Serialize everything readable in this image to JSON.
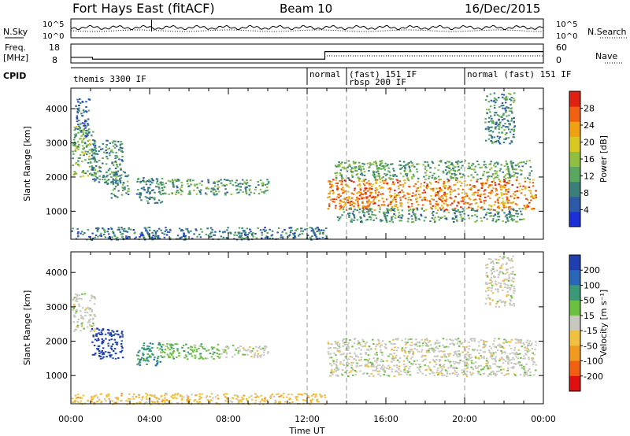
{
  "header": {
    "station": "Fort Hays East (fitACF)",
    "beam": "Beam 10",
    "date": "16/Dec/2015"
  },
  "noise_panel": {
    "left_label": "N.Sky",
    "right_label": "N.Search",
    "y_ticks_left": [
      "10^5",
      "10^0"
    ],
    "y_ticks_right": [
      "10^5",
      "10^0"
    ]
  },
  "freq_panel": {
    "left_label_1": "Freq.",
    "left_label_2": "[MHz]",
    "right_label": "Nave",
    "y_ticks_left": [
      "18",
      "8"
    ],
    "y_ticks_right": [
      "60",
      "0"
    ],
    "freq_series_mhz": [
      [
        0,
        11
      ],
      [
        1.1,
        11
      ],
      [
        1.1,
        10
      ],
      [
        12.9,
        10
      ],
      [
        12.9,
        14
      ],
      [
        24,
        14
      ]
    ]
  },
  "cpid_panel": {
    "label": "CPID",
    "modes": [
      {
        "text": "themis 3300 IF",
        "start_h": 0,
        "end_h": 12
      },
      {
        "text": "normal",
        "start_h": 12,
        "end_h": 14
      },
      {
        "text": "(fast) 151 IF",
        "start_h": 14,
        "end_h": 20
      },
      {
        "text": "rbsp 200 IF",
        "start_h": 14,
        "end_h": 20
      },
      {
        "text": "normal (fast) 151 IF",
        "start_h": 20,
        "end_h": 24
      }
    ]
  },
  "chart_data": [
    {
      "type": "heatmap",
      "title": "",
      "xlabel": "Time UT",
      "ylabel": "Slant Range [km]",
      "xlim_hours": [
        0,
        24
      ],
      "ylim_km": [
        180,
        4600
      ],
      "y_ticks": [
        1000,
        2000,
        3000,
        4000
      ],
      "colorbar": {
        "label": "Power [dB]",
        "ticks": [
          4,
          8,
          12,
          16,
          20,
          24,
          28
        ],
        "range": [
          0,
          32
        ],
        "colors": [
          "#1a2fd8",
          "#2c5aa8",
          "#3a7f7a",
          "#5aa860",
          "#8fbf40",
          "#d8c820",
          "#f0a010",
          "#f06010",
          "#e02010"
        ]
      },
      "regions": [
        {
          "t0": 0.05,
          "t1": 1.2,
          "r0": 2000,
          "r1": 3500,
          "val": 14
        },
        {
          "t0": 0.2,
          "t1": 0.9,
          "r0": 3200,
          "r1": 4300,
          "val": 6
        },
        {
          "t0": 1.0,
          "t1": 2.6,
          "r0": 1800,
          "r1": 3100,
          "val": 9
        },
        {
          "t0": 2.0,
          "t1": 2.9,
          "r0": 1400,
          "r1": 2200,
          "val": 11
        },
        {
          "t0": 3.3,
          "t1": 4.6,
          "r0": 1250,
          "r1": 2000,
          "val": 8
        },
        {
          "t0": 4.4,
          "t1": 10.0,
          "r0": 1500,
          "r1": 1950,
          "val": 11
        },
        {
          "t0": 13.0,
          "t1": 23.6,
          "r0": 1050,
          "r1": 1950,
          "val": 26
        },
        {
          "t0": 13.2,
          "t1": 23.4,
          "r0": 1950,
          "r1": 2500,
          "val": 12
        },
        {
          "t0": 13.5,
          "t1": 23.0,
          "r0": 700,
          "r1": 1100,
          "val": 10
        },
        {
          "t0": 0.0,
          "t1": 13.0,
          "r0": 180,
          "r1": 550,
          "val": 7
        },
        {
          "t0": 21.0,
          "t1": 22.5,
          "r0": 3000,
          "r1": 4500,
          "val": 9
        }
      ]
    },
    {
      "type": "heatmap",
      "title": "",
      "xlabel": "Time UT",
      "ylabel": "Slant Range [km]",
      "xlim_hours": [
        0,
        24
      ],
      "ylim_km": [
        180,
        4600
      ],
      "y_ticks": [
        1000,
        2000,
        3000,
        4000
      ],
      "colorbar": {
        "label": "Velocity [m s⁻¹]",
        "ticks": [
          "200",
          "100",
          "50",
          "15",
          "-15",
          "-50",
          "-100",
          "-200"
        ],
        "colors": [
          "#1f3fb0",
          "#2a67b8",
          "#3a9a78",
          "#6cc040",
          "#c8c8c0",
          "#f0c040",
          "#f09a20",
          "#f06010",
          "#e01010"
        ]
      },
      "regions": [
        {
          "t0": 0.05,
          "t1": 1.2,
          "r0": 2300,
          "r1": 3400,
          "val": 4
        },
        {
          "t0": 1.0,
          "t1": 2.6,
          "r0": 1500,
          "r1": 2400,
          "val": 0
        },
        {
          "t0": 3.3,
          "t1": 4.6,
          "r0": 1300,
          "r1": 2000,
          "val": 2
        },
        {
          "t0": 4.4,
          "t1": 7.5,
          "r0": 1500,
          "r1": 1950,
          "val": 3
        },
        {
          "t0": 7.5,
          "t1": 10.0,
          "r0": 1550,
          "r1": 1900,
          "val": 4
        },
        {
          "t0": 13.0,
          "t1": 23.6,
          "r0": 1000,
          "r1": 2100,
          "val": 4
        },
        {
          "t0": 0.0,
          "t1": 13.0,
          "r0": 180,
          "r1": 500,
          "val": 5
        },
        {
          "t0": 21.0,
          "t1": 22.5,
          "r0": 3000,
          "r1": 4500,
          "val": 4
        }
      ]
    }
  ],
  "x_axis": {
    "label": "Time UT",
    "ticks": [
      "00:00",
      "04:00",
      "08:00",
      "12:00",
      "16:00",
      "20:00",
      "00:00"
    ]
  }
}
